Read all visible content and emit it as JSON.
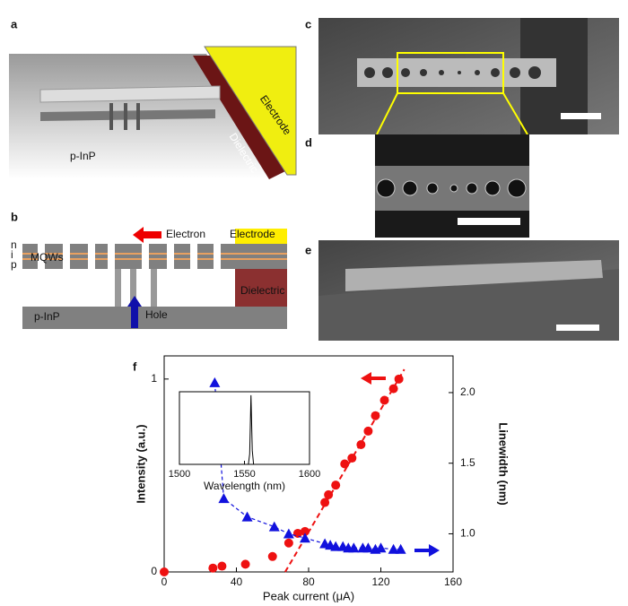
{
  "panels": {
    "a": {
      "label": "a",
      "electrode": "Electrode",
      "dielectric": "Dielectric",
      "substrate": "p-InP"
    },
    "b": {
      "label": "b",
      "n": "n",
      "i": "i",
      "p": "p",
      "mqw": "MQWs",
      "electron": "Electron",
      "electrode": "Electrode",
      "dielectric": "Dielectric",
      "hole": "Hole",
      "substrate": "p-InP"
    },
    "c": {
      "label": "c"
    },
    "d": {
      "label": "d"
    },
    "e": {
      "label": "e"
    }
  },
  "chart_data": {
    "type": "scatter",
    "label": "f",
    "xlabel": "Peak current (μA)",
    "ylabel": "Intensity (a.u.)",
    "y2label": "Linewidth (nm)",
    "xlim": [
      0,
      160
    ],
    "xticks": [
      0,
      40,
      80,
      120,
      160
    ],
    "ylim": [
      0,
      1.12
    ],
    "yticks": [
      0,
      1
    ],
    "y2lim": [
      0.73,
      2.26
    ],
    "y2ticks": [
      {
        "value": 1,
        "label": "1.0"
      },
      {
        "value": 1.5,
        "label": "1.5"
      },
      {
        "value": 2,
        "label": "2.0"
      }
    ],
    "series": [
      {
        "color": "#ee1111",
        "marker": "circle",
        "x": [
          0,
          27,
          32,
          45,
          60,
          69,
          74,
          78,
          89,
          91,
          95,
          100,
          104,
          109,
          113,
          117,
          122,
          127,
          130
        ],
        "values": [
          0,
          0.02,
          0.03,
          0.04,
          0.08,
          0.15,
          0.2,
          0.21,
          0.36,
          0.4,
          0.45,
          0.56,
          0.59,
          0.66,
          0.73,
          0.81,
          0.89,
          0.95,
          1.0
        ]
      },
      {
        "color": "#1111dd",
        "marker": "triangle",
        "axis": "y2",
        "x": [
          28,
          33,
          46,
          61,
          69,
          78,
          89,
          92,
          95,
          99,
          102,
          105,
          110,
          113,
          117,
          120,
          127,
          131
        ],
        "values": [
          2.07,
          1.25,
          1.12,
          1.05,
          1.0,
          0.97,
          0.93,
          0.92,
          0.91,
          0.91,
          0.9,
          0.9,
          0.9,
          0.9,
          0.89,
          0.9,
          0.89,
          0.89
        ]
      }
    ],
    "fit": {
      "color": "#ee1111",
      "x": [
        67,
        133
      ],
      "values": [
        0,
        1.05
      ]
    },
    "inset": {
      "xlabel": "Wavelength (nm)",
      "xlim": [
        1500,
        1600
      ],
      "xticks": [
        1500,
        1550,
        1600
      ],
      "ylim": [
        0,
        1.05
      ],
      "x": [
        1500,
        1553,
        1554,
        1555,
        1556,
        1557,
        1600
      ],
      "values": [
        0,
        0,
        0.15,
        1,
        0.2,
        0,
        0
      ]
    }
  }
}
